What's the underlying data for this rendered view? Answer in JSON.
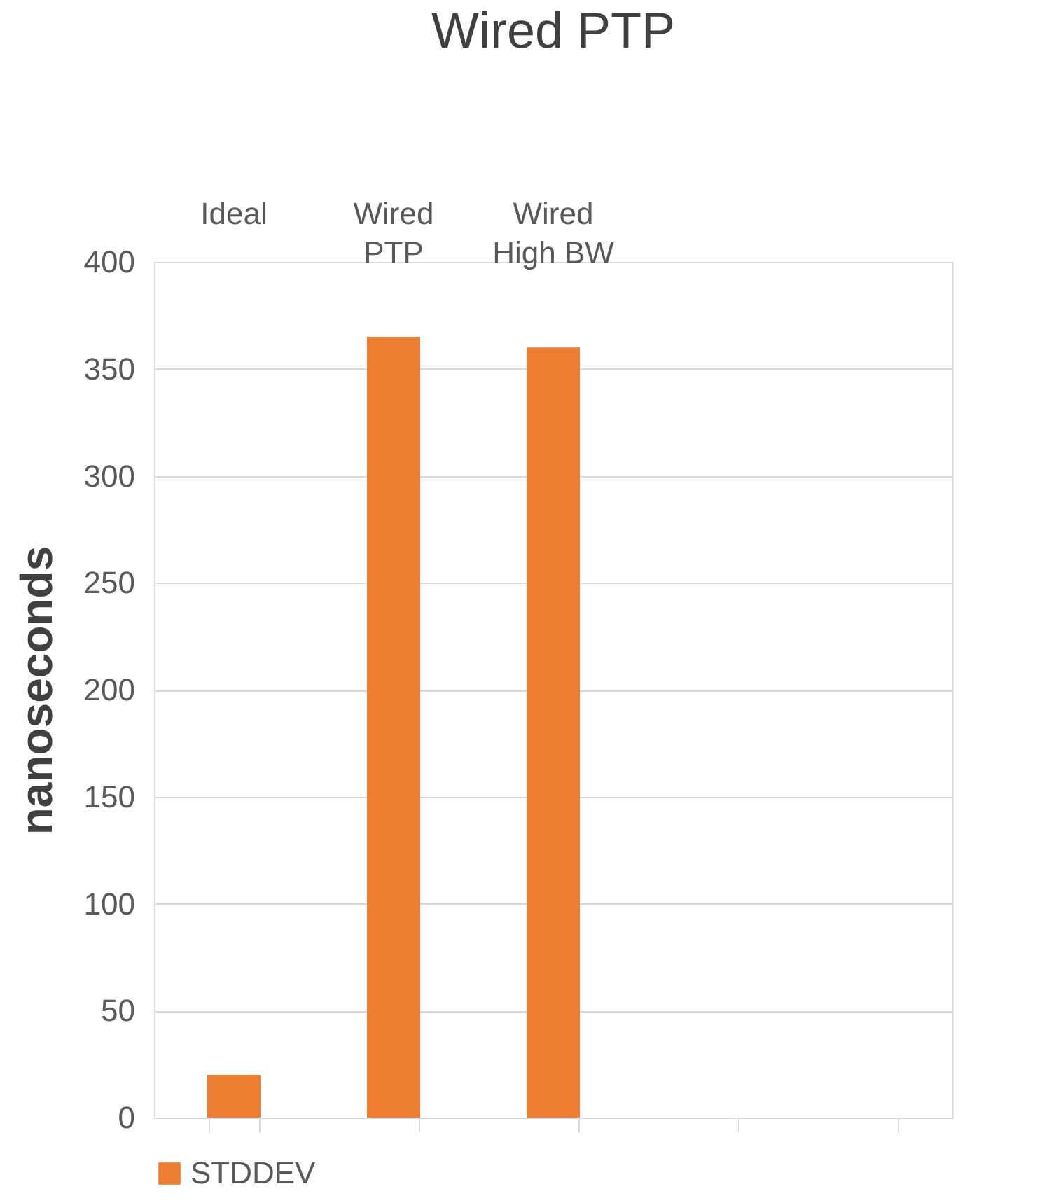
{
  "chart_data": {
    "type": "bar",
    "title": "Wired PTP",
    "ylabel": "nanoseconds",
    "categories": [
      "Ideal",
      "Wired PTP",
      "Wired High BW",
      null,
      null
    ],
    "series": [
      {
        "name": "STDDEV",
        "color": "#ed7d31",
        "values": [
          20,
          365,
          360,
          null,
          null
        ]
      }
    ],
    "ylim": [
      0,
      400
    ],
    "yticks": [
      0,
      50,
      100,
      150,
      200,
      250,
      300,
      350,
      400
    ],
    "grid": "y",
    "legend": "bottom"
  }
}
